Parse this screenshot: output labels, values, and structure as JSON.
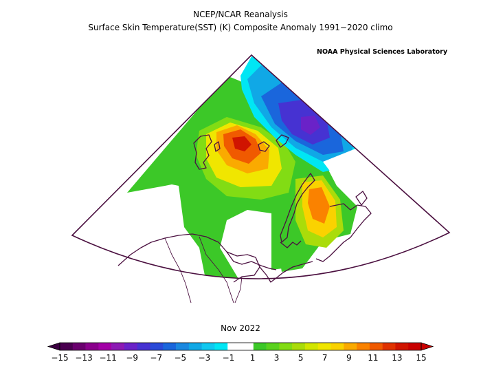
{
  "header": {
    "title": "NCEP/NCAR Reanalysis",
    "subtitle": "Surface Skin Temperature(SST) (K) Composite Anomaly 1991−2020 climo",
    "credit": "NOAA Physical Sciences Laboratory"
  },
  "map": {
    "date_label": "Nov 2022",
    "variable": "Surface Skin Temperature anomaly",
    "units": "K",
    "region": "Barents Sea / Kara Sea / Svalbard / Novaya Zemlya / northern Scandinavia",
    "land_color": "#ffffff",
    "coast_color": "#4b1040",
    "frame_color": "#4b1040"
  },
  "colorbar": {
    "tick_labels": [
      "−15",
      "−13",
      "−11",
      "−9",
      "−7",
      "−5",
      "−3",
      "−1",
      "1",
      "3",
      "5",
      "7",
      "9",
      "11",
      "13",
      "15"
    ],
    "below_color": "#3a0040",
    "above_color": "#c80000",
    "colors": [
      "#4a0050",
      "#6a006e",
      "#8a008c",
      "#a200a6",
      "#8c1ab4",
      "#6a22c8",
      "#4632d2",
      "#2a4ad8",
      "#1a66dc",
      "#1a88e0",
      "#10a8e6",
      "#10c8f0",
      "#00e6f4",
      "#ffffff",
      "#ffffff",
      "#3cc828",
      "#5ad21e",
      "#82dc14",
      "#aadc0a",
      "#d2e600",
      "#f0e600",
      "#fad200",
      "#faaa00",
      "#fa8200",
      "#f05a00",
      "#e03200",
      "#d01400",
      "#c80000"
    ]
  }
}
